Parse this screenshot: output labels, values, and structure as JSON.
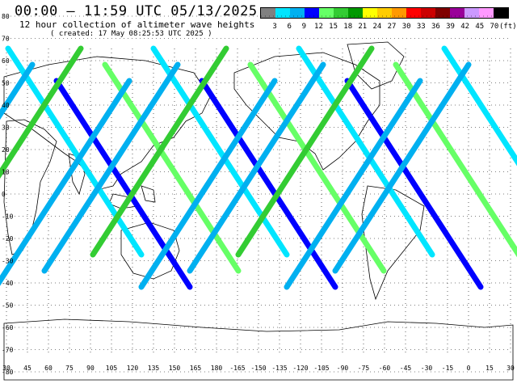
{
  "header": {
    "title": "00:00 – 11:59 UTC 05/13/2025",
    "subtitle": "12 hour collection of altimeter wave heights",
    "created": "( created: 17 May 08:25:53 UTC 2025 )"
  },
  "colorbar": {
    "unit": "(ft)",
    "labels": [
      "3",
      "6",
      "9",
      "12",
      "15",
      "18",
      "21",
      "24",
      "27",
      "30",
      "33",
      "36",
      "39",
      "42",
      "45",
      "70"
    ],
    "colors": [
      "#808080",
      "#00e5ff",
      "#00b0f0",
      "#0000ff",
      "#66ff66",
      "#33cc33",
      "#009900",
      "#ffff00",
      "#ffcc00",
      "#ff9900",
      "#ff0000",
      "#cc0000",
      "#800000",
      "#990099",
      "#cc99ff",
      "#ff99ff",
      "#000000"
    ]
  },
  "axes": {
    "lat_labels": [
      "80",
      "70",
      "60",
      "50",
      "40",
      "30",
      "20",
      "10",
      "0",
      "-10",
      "-20",
      "-30",
      "-40",
      "-50",
      "-60",
      "-70",
      "-80"
    ],
    "lon_labels": [
      "30",
      "45",
      "60",
      "75",
      "90",
      "105",
      "120",
      "135",
      "150",
      "165",
      "180",
      "-165",
      "-150",
      "-135",
      "-120",
      "-105",
      "-90",
      "-75",
      "-60",
      "-45",
      "-30",
      "-15",
      "0",
      "15",
      "30"
    ]
  }
}
